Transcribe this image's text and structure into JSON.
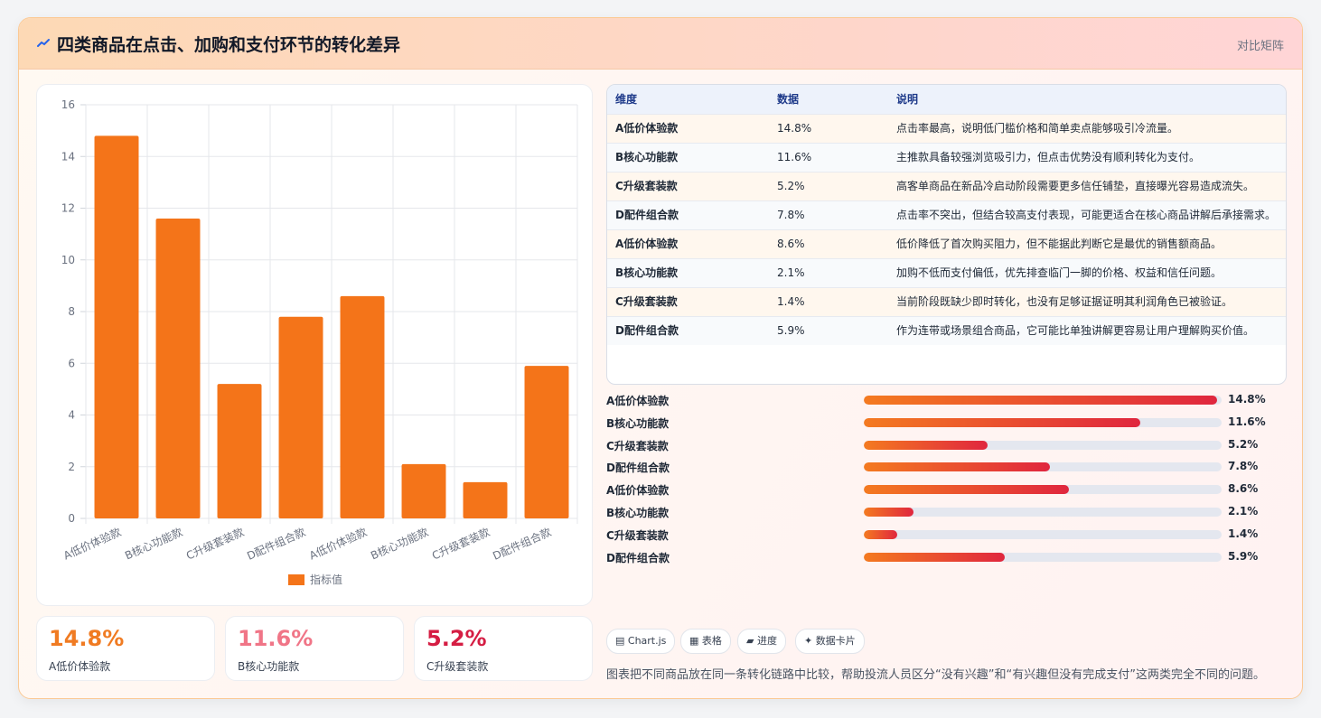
{
  "header": {
    "title": "四类商品在点击、加购和支付环节的转化差异",
    "tag": "对比矩阵"
  },
  "chart_data": {
    "type": "bar",
    "categories": [
      "A低价体验款",
      "B核心功能款",
      "C升级套装款",
      "D配件组合款",
      "A低价体验款",
      "B核心功能款",
      "C升级套装款",
      "D配件组合款"
    ],
    "series": [
      {
        "name": "指标值",
        "values": [
          14.8,
          11.6,
          5.2,
          7.8,
          8.6,
          2.1,
          1.4,
          5.9
        ]
      }
    ],
    "ylim": [
      0,
      16
    ],
    "yticks": [
      0,
      2,
      4,
      6,
      8,
      10,
      12,
      14,
      16
    ],
    "grid": true,
    "legend": "bottom",
    "color": "#f47419"
  },
  "kpis": [
    {
      "value": "14.8%",
      "label": "A低价体验款",
      "color": "#f07b22"
    },
    {
      "value": "11.6%",
      "label": "B核心功能款",
      "color": "#f07587"
    },
    {
      "value": "5.2%",
      "label": "C升级套装款",
      "color": "#d51d43"
    }
  ],
  "table": {
    "headers": [
      "维度",
      "数据",
      "说明"
    ],
    "rows": [
      {
        "dim": "A低价体验款",
        "value": "14.8%",
        "note": "点击率最高，说明低门槛价格和简单卖点能够吸引冷流量。"
      },
      {
        "dim": "B核心功能款",
        "value": "11.6%",
        "note": "主推款具备较强浏览吸引力，但点击优势没有顺利转化为支付。"
      },
      {
        "dim": "C升级套装款",
        "value": "5.2%",
        "note": "高客单商品在新品冷启动阶段需要更多信任铺垫，直接曝光容易造成流失。"
      },
      {
        "dim": "D配件组合款",
        "value": "7.8%",
        "note": "点击率不突出，但结合较高支付表现，可能更适合在核心商品讲解后承接需求。"
      },
      {
        "dim": "A低价体验款",
        "value": "8.6%",
        "note": "低价降低了首次购买阻力，但不能据此判断它是最优的销售额商品。"
      },
      {
        "dim": "B核心功能款",
        "value": "2.1%",
        "note": "加购不低而支付偏低，优先排查临门一脚的价格、权益和信任问题。"
      },
      {
        "dim": "C升级套装款",
        "value": "1.4%",
        "note": "当前阶段既缺少即时转化，也没有足够证据证明其利润角色已被验证。"
      },
      {
        "dim": "D配件组合款",
        "value": "5.9%",
        "note": "作为连带或场景组合商品，它可能比单独讲解更容易让用户理解购买价值。"
      }
    ]
  },
  "progress": {
    "max": 15,
    "items": [
      {
        "label": "A低价体验款",
        "value": 14.8,
        "text": "14.8%"
      },
      {
        "label": "B核心功能款",
        "value": 11.6,
        "text": "11.6%"
      },
      {
        "label": "C升级套装款",
        "value": 5.2,
        "text": "5.2%"
      },
      {
        "label": "D配件组合款",
        "value": 7.8,
        "text": "7.8%"
      },
      {
        "label": "A低价体验款",
        "value": 8.6,
        "text": "8.6%"
      },
      {
        "label": "B核心功能款",
        "value": 2.1,
        "text": "2.1%"
      },
      {
        "label": "C升级套装款",
        "value": 1.4,
        "text": "1.4%"
      },
      {
        "label": "D配件组合款",
        "value": 5.9,
        "text": "5.9%"
      }
    ]
  },
  "chips": [
    {
      "icon": "chart-icon",
      "label": "Chart.js"
    },
    {
      "icon": "table-icon",
      "label": "表格"
    },
    {
      "icon": "progress-icon",
      "label": "进度"
    },
    {
      "icon": "card-icon",
      "label": "数据卡片"
    }
  ],
  "footnote": "图表把不同商品放在同一条转化链路中比较，帮助投流人员区分“没有兴趣”和“有兴趣但没有完成支付”这两类完全不同的问题。"
}
